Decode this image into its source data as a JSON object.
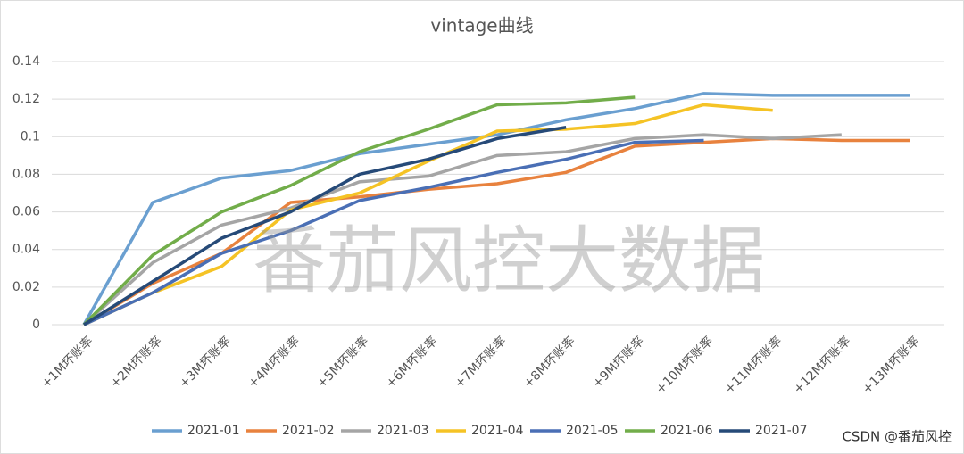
{
  "chart_data": {
    "type": "line",
    "title": "vintage曲线",
    "categories": [
      "+1M坏账率",
      "+2M坏账率",
      "+3M坏账率",
      "+4M坏账率",
      "+5M坏账率",
      "+6M坏账率",
      "+7M坏账率",
      "+8M坏账率",
      "+9M坏账率",
      "+10M坏账率",
      "+11M坏账率",
      "+12M坏账率",
      "+13M坏账率"
    ],
    "series": [
      {
        "name": "2021-01",
        "color": "#6a9fd0",
        "values": [
          0,
          0.065,
          0.078,
          0.082,
          0.091,
          0.096,
          0.101,
          0.109,
          0.115,
          0.123,
          0.122,
          0.122,
          0.122
        ]
      },
      {
        "name": "2021-02",
        "color": "#e8823e",
        "values": [
          0,
          0.022,
          0.038,
          0.065,
          0.068,
          0.072,
          0.075,
          0.081,
          0.095,
          0.097,
          0.099,
          0.098,
          0.098
        ]
      },
      {
        "name": "2021-03",
        "color": "#a5a5a5",
        "values": [
          0,
          0.033,
          0.053,
          0.062,
          0.076,
          0.079,
          0.09,
          0.092,
          0.099,
          0.101,
          0.099,
          0.101,
          null
        ]
      },
      {
        "name": "2021-04",
        "color": "#f5c325",
        "values": [
          0,
          0.017,
          0.031,
          0.061,
          0.07,
          0.087,
          0.103,
          0.104,
          0.107,
          0.117,
          0.114,
          null,
          null
        ]
      },
      {
        "name": "2021-05",
        "color": "#4a6fb5",
        "values": [
          0,
          0.017,
          0.038,
          0.05,
          0.066,
          0.073,
          0.081,
          0.088,
          0.097,
          0.098,
          null,
          null,
          null
        ]
      },
      {
        "name": "2021-06",
        "color": "#72ad4a",
        "values": [
          0,
          0.037,
          0.06,
          0.074,
          0.092,
          0.104,
          0.117,
          0.118,
          0.121,
          null,
          null,
          null,
          null
        ]
      },
      {
        "name": "2021-07",
        "color": "#264a78",
        "values": [
          0,
          0.023,
          0.046,
          0.06,
          0.08,
          0.088,
          0.099,
          0.105,
          null,
          null,
          null,
          null,
          null
        ]
      }
    ],
    "ylim": [
      0,
      0.14
    ],
    "yticks": [
      0,
      0.02,
      0.04,
      0.06,
      0.08,
      0.1,
      0.12,
      0.14
    ],
    "grid": true,
    "legend": "bottom",
    "watermark": "番茄风控大数据",
    "credit": "CSDN @番茄风控"
  }
}
